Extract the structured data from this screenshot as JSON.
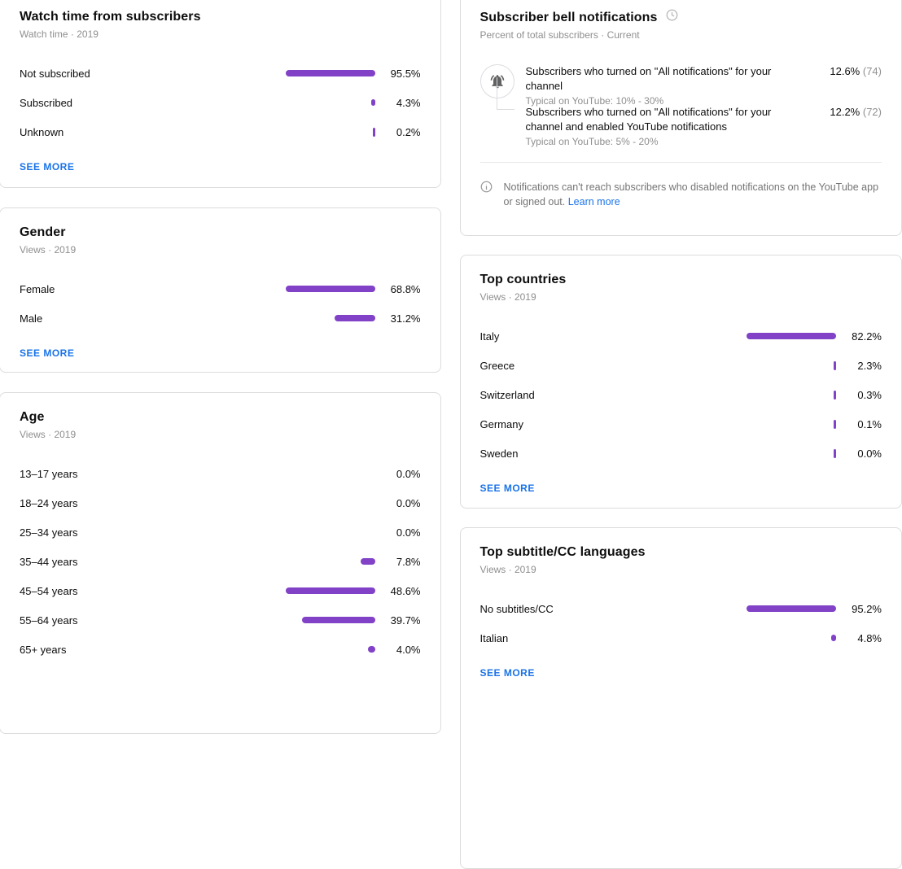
{
  "colors": {
    "bar": "#8142c7",
    "link": "#1a73e8"
  },
  "cards": {
    "watch_time": {
      "title": "Watch time from subscribers",
      "subtitle": "Watch time · 2019",
      "see_more": "SEE MORE"
    },
    "gender": {
      "title": "Gender",
      "subtitle": "Views · 2019",
      "see_more": "SEE MORE"
    },
    "age": {
      "title": "Age",
      "subtitle": "Views · 2019"
    },
    "bell": {
      "title": "Subscriber bell notifications",
      "subtitle": "Percent of total subscribers · Current",
      "rows": [
        {
          "label": "Subscribers who turned on \"All notifications\" for your channel",
          "typical": "Typical on YouTube: 10% - 30%",
          "value": "12.6%",
          "count": "(74)"
        },
        {
          "label": "Subscribers who turned on \"All notifications\" for your channel and enabled YouTube notifications",
          "typical": "Typical on YouTube: 5% - 20%",
          "value": "12.2%",
          "count": "(72)"
        }
      ],
      "note": {
        "text": "Notifications can't reach subscribers who disabled notifications on the YouTube app or signed out.",
        "link": "Learn more"
      }
    },
    "countries": {
      "title": "Top countries",
      "subtitle": "Views · 2019",
      "see_more": "SEE MORE"
    },
    "cc": {
      "title": "Top subtitle/CC languages",
      "subtitle": "Views · 2019",
      "see_more": "SEE MORE"
    }
  },
  "chart_data": [
    {
      "type": "bar",
      "key": "watch_time",
      "title": "Watch time from subscribers",
      "subtitle": "Watch time · 2019",
      "orientation": "horizontal-right-anchored",
      "unit": "%",
      "categories": [
        "Not subscribed",
        "Subscribed",
        "Unknown"
      ],
      "values": [
        95.5,
        4.3,
        0.2
      ],
      "labels": [
        "95.5%",
        "4.3%",
        "0.2%"
      ],
      "show_bar": [
        true,
        true,
        true
      ]
    },
    {
      "type": "bar",
      "key": "gender",
      "title": "Gender",
      "subtitle": "Views · 2019",
      "orientation": "horizontal-right-anchored",
      "unit": "%",
      "categories": [
        "Female",
        "Male"
      ],
      "values": [
        68.8,
        31.2
      ],
      "labels": [
        "68.8%",
        "31.2%"
      ],
      "show_bar": [
        true,
        true
      ]
    },
    {
      "type": "bar",
      "key": "age",
      "title": "Age",
      "subtitle": "Views · 2019",
      "orientation": "horizontal-right-anchored",
      "unit": "%",
      "categories": [
        "13–17 years",
        "18–24 years",
        "25–34 years",
        "35–44 years",
        "45–54 years",
        "55–64 years",
        "65+ years"
      ],
      "values": [
        0.0,
        0.0,
        0.0,
        7.8,
        48.6,
        39.7,
        4.0
      ],
      "labels": [
        "0.0%",
        "0.0%",
        "0.0%",
        "7.8%",
        "48.6%",
        "39.7%",
        "4.0%"
      ],
      "show_bar": [
        false,
        false,
        false,
        true,
        true,
        true,
        true
      ]
    },
    {
      "type": "bar",
      "key": "countries",
      "title": "Top countries",
      "subtitle": "Views · 2019",
      "orientation": "horizontal-right-anchored",
      "unit": "%",
      "categories": [
        "Italy",
        "Greece",
        "Switzerland",
        "Germany",
        "Sweden"
      ],
      "values": [
        82.2,
        2.3,
        0.3,
        0.1,
        0.0
      ],
      "labels": [
        "82.2%",
        "2.3%",
        "0.3%",
        "0.1%",
        "0.0%"
      ],
      "show_bar": [
        true,
        true,
        true,
        true,
        true
      ]
    },
    {
      "type": "bar",
      "key": "cc",
      "title": "Top subtitle/CC languages",
      "subtitle": "Views · 2019",
      "orientation": "horizontal-right-anchored",
      "unit": "%",
      "categories": [
        "No subtitles/CC",
        "Italian"
      ],
      "values": [
        95.2,
        4.8
      ],
      "labels": [
        "95.2%",
        "4.8%"
      ],
      "show_bar": [
        true,
        true
      ]
    },
    {
      "type": "table",
      "key": "bell",
      "title": "Subscriber bell notifications",
      "subtitle": "Percent of total subscribers · Current",
      "metrics": [
        {
          "label": "Subscribers who turned on \"All notifications\" for your channel",
          "typical_range": "10% - 30%",
          "value_pct": 12.6,
          "value_count": 74
        },
        {
          "label": "Subscribers who turned on \"All notifications\" for your channel and enabled YouTube notifications",
          "typical_range": "5% - 20%",
          "value_pct": 12.2,
          "value_count": 72
        }
      ]
    }
  ]
}
